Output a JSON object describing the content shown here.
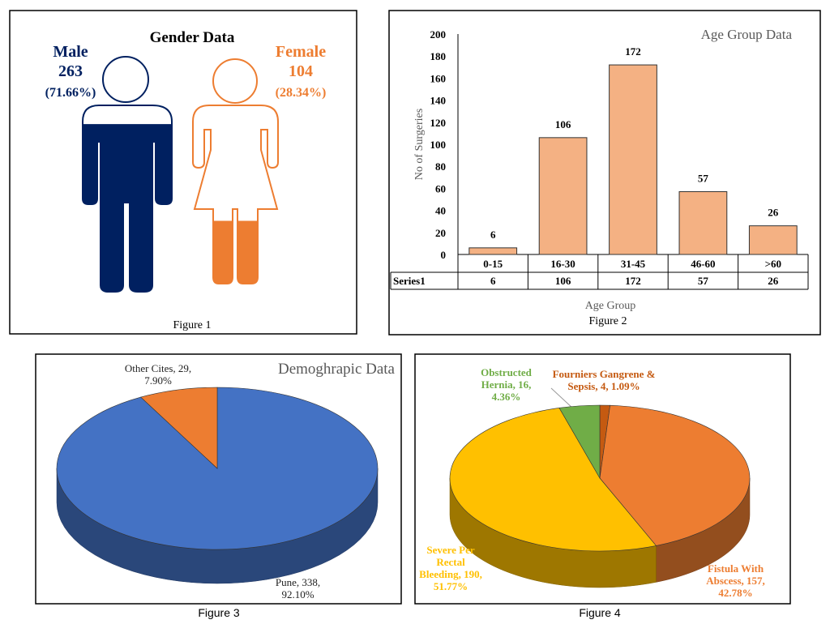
{
  "chart_data": [
    {
      "type": "pictogram",
      "title": "Gender Data",
      "caption": "Figure 1",
      "series": [
        {
          "name": "Male",
          "color": "#002060",
          "values": [
            263
          ],
          "percent": 71.66,
          "percent_label": "(71.66%)"
        },
        {
          "name": "Female",
          "color": "#ed7d31",
          "values": [
            104
          ],
          "percent": 28.34,
          "percent_label": "(28.34%)"
        }
      ]
    },
    {
      "type": "bar",
      "title": "Age Group Data",
      "caption": "Figure 2",
      "xlabel": "Age Group",
      "ylabel": "No of Surgeries",
      "categories": [
        "0-15",
        "16-30",
        "31-45",
        "46-60",
        ">60"
      ],
      "series": [
        {
          "name": "Series1",
          "color": "#f4b183",
          "values": [
            6,
            106,
            172,
            57,
            26
          ]
        }
      ],
      "ylim": [
        0,
        200
      ],
      "yticks": [
        0,
        20,
        40,
        60,
        80,
        100,
        120,
        140,
        160,
        180,
        200
      ],
      "data_table": true
    },
    {
      "type": "pie",
      "title": "Demoghrapic Data",
      "caption": "Figure 3",
      "categories": [
        "Pune",
        "Other Cites"
      ],
      "values": [
        338,
        29
      ],
      "percents": [
        92.1,
        7.9
      ],
      "value_labels": [
        "Pune, 338, 92.10%",
        "Other Cites, 29, 7.90%"
      ],
      "colors": [
        "#4472c4",
        "#ed7d31"
      ]
    },
    {
      "type": "pie",
      "caption": "Figure 4",
      "categories": [
        "Fourniers Gangrene & Sepsis",
        "Fistula With Abscess",
        "Severe Per Rectal Bleeding",
        "Obstructed Hernia"
      ],
      "values": [
        4,
        157,
        190,
        16
      ],
      "percents": [
        1.09,
        42.78,
        51.77,
        4.36
      ],
      "value_labels": [
        "Fourniers Gangrene & Sepsis, 4, 1.09%",
        "Fistula With Abscess, 157, 42.78%",
        "Severe Per Rectal Bleeding, 190, 51.77%",
        "Obstructed Hernia, 16, 4.36%"
      ],
      "colors": [
        "#c55a11",
        "#ed7d31",
        "#ffc000",
        "#70ad47"
      ]
    }
  ]
}
